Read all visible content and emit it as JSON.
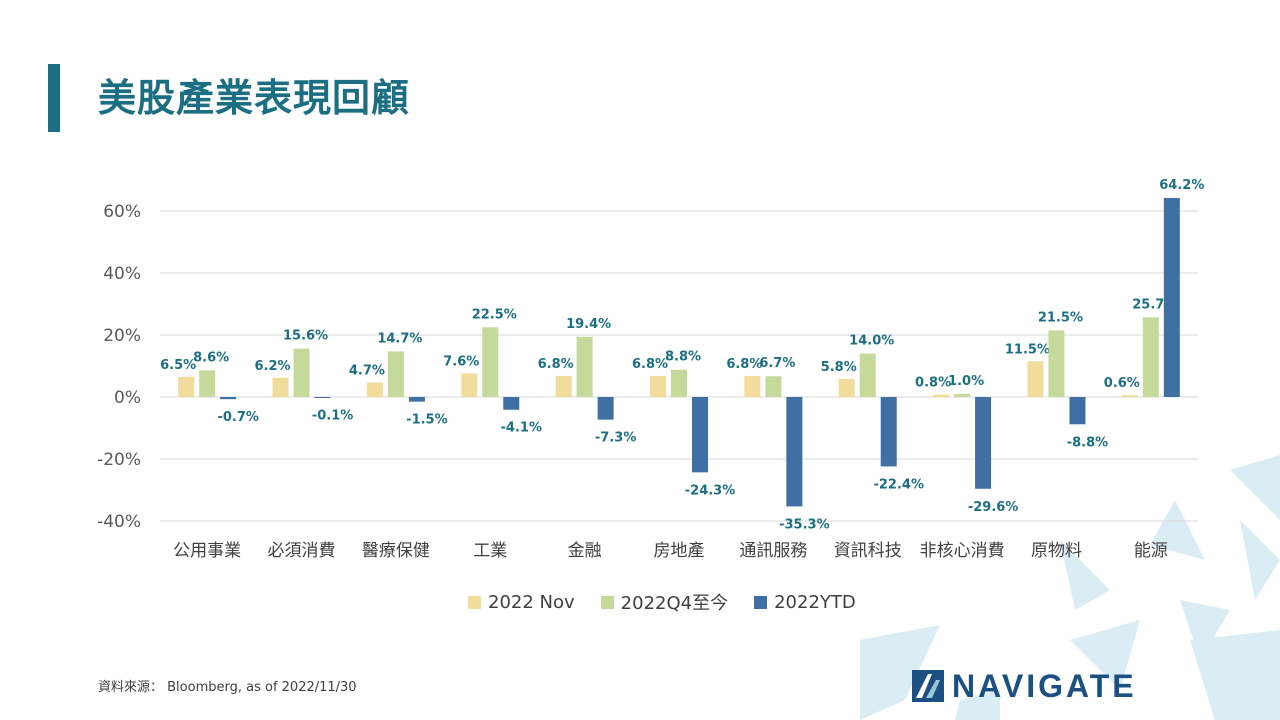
{
  "header": {
    "title": "美股產業表現回顧"
  },
  "footer": {
    "source": "資料來源： Bloomberg,  as of 2022/11/30",
    "logo_text": "NAVIGATE"
  },
  "colors": {
    "accent": "#1c6f82",
    "nov": "#f2dc9b",
    "q4": "#c4d99a",
    "ytd": "#3f6fa3",
    "label": "#1c6f82",
    "grid": "#d9d9d9",
    "tick": "#595959"
  },
  "chart_data": {
    "type": "bar",
    "categories": [
      "公用事業",
      "必須消費",
      "醫療保健",
      "工業",
      "金融",
      "房地產",
      "通訊服務",
      "資訊科技",
      "非核心消費",
      "原物料",
      "能源"
    ],
    "series": [
      {
        "name": "2022 Nov",
        "values": [
          6.5,
          6.2,
          4.7,
          7.6,
          6.8,
          6.8,
          6.8,
          5.8,
          0.8,
          11.5,
          0.6
        ],
        "labels": [
          "6.5%",
          "6.2%",
          "4.7%",
          "7.6%",
          "6.8%",
          "6.8%",
          "6.8%",
          "5.8%",
          "0.8%",
          "11.5%",
          "0.6%"
        ]
      },
      {
        "name": "2022Q4至今",
        "values": [
          8.6,
          15.6,
          14.7,
          22.5,
          19.4,
          8.8,
          6.7,
          14.0,
          1.0,
          21.5,
          25.7
        ],
        "labels": [
          "8.6%",
          "15.6%",
          "14.7%",
          "22.5%",
          "19.4%",
          "8.8%",
          "6.7%",
          "14.0%",
          "1.0%",
          "21.5%",
          "25.7%"
        ]
      },
      {
        "name": "2022YTD",
        "values": [
          -0.7,
          -0.1,
          -1.5,
          -4.1,
          -7.3,
          -24.3,
          -35.3,
          -22.4,
          -29.6,
          -8.8,
          64.2
        ],
        "labels": [
          "-0.7%",
          "-0.1%",
          "-1.5%",
          "-4.1%",
          "-7.3%",
          "-24.3%",
          "-35.3%",
          "-22.4%",
          "-29.6%",
          "-8.8%",
          "64.2%"
        ]
      }
    ],
    "ylim": [
      -40,
      64.2
    ],
    "yticks": [
      60,
      40,
      20,
      0,
      -20,
      -40
    ],
    "ytick_labels": [
      "60%",
      "40%",
      "20%",
      "0%",
      "-20%",
      "-40%"
    ],
    "grid": true,
    "legend_position": "bottom"
  }
}
